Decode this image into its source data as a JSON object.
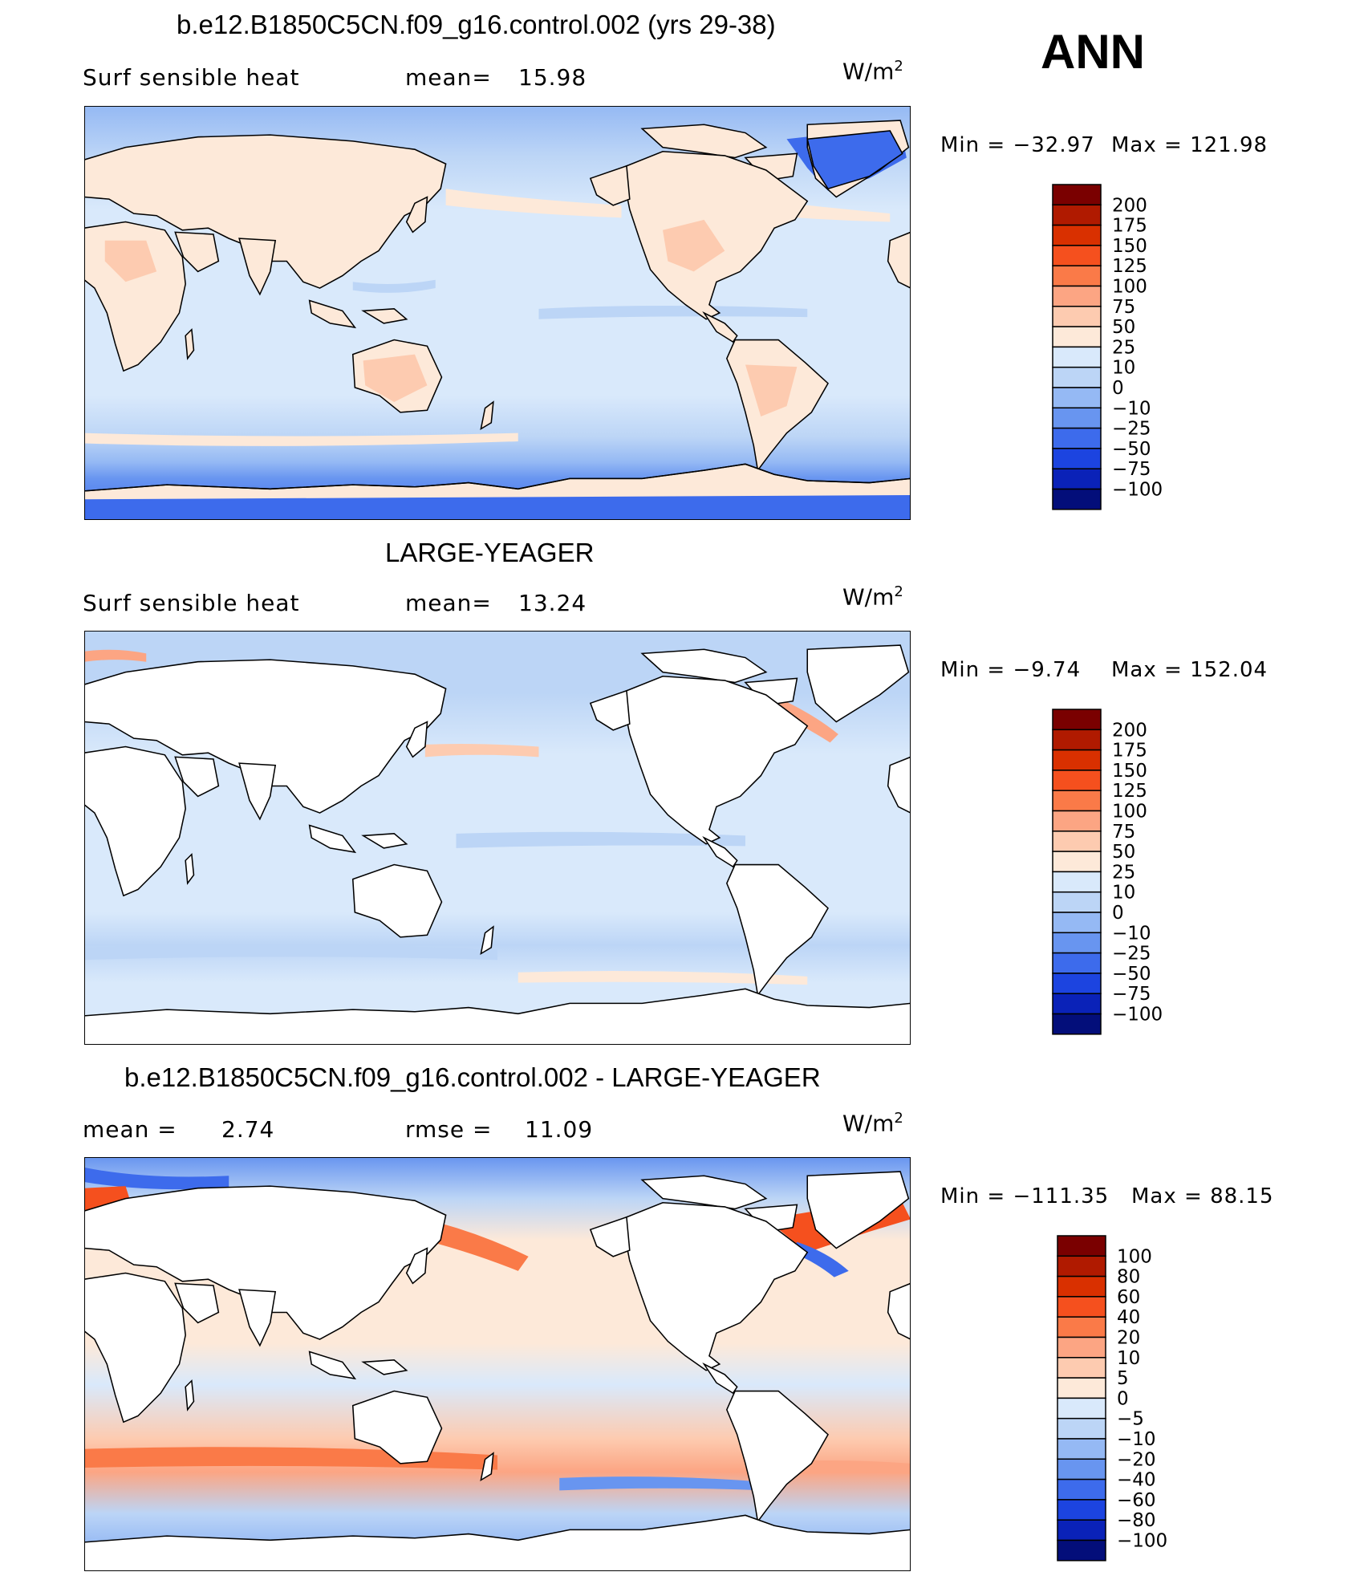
{
  "season": "ANN",
  "units": {
    "base": "W/m",
    "exp": "2"
  },
  "panels": [
    {
      "title": "b.e12.B1850C5CN.f09_g16.control.002 (yrs 29-38)",
      "left_label": "Surf  sensible  heat",
      "stat_label": "mean=",
      "stat_value": "15.98",
      "min_label": "Min  =  −32.97",
      "max_label": "Max  =  121.98",
      "style": "model"
    },
    {
      "title": "LARGE-YEAGER",
      "left_label": "Surf  sensible  heat",
      "stat_label": "mean=",
      "stat_value": "13.24",
      "min_label": "Min  =   −9.74",
      "max_label": "Max  =  152.04",
      "style": "obs"
    },
    {
      "title": "b.e12.B1850C5CN.f09_g16.control.002 - LARGE-YEAGER",
      "left_label": "mean  =",
      "left_value": "2.74",
      "stat_label": "rmse  =",
      "stat_value": "11.09",
      "min_label": "Min  =  −111.35",
      "max_label": "Max  =   88.15",
      "style": "diff"
    }
  ],
  "colorbars": {
    "abs": {
      "labels": [
        "200",
        "175",
        "150",
        "125",
        "100",
        "75",
        "50",
        "25",
        "10",
        "0",
        "−10",
        "−25",
        "−50",
        "−75",
        "−100"
      ],
      "colors": [
        "#7a0000",
        "#b01a00",
        "#d93000",
        "#f5501e",
        "#fa7a48",
        "#fca583",
        "#fdcbb0",
        "#fde9d9",
        "#d9e9fb",
        "#bcd5f6",
        "#95b9f4",
        "#6895f0",
        "#3d6bec",
        "#1c44e0",
        "#0a22b8",
        "#030e7a"
      ]
    },
    "diff": {
      "labels": [
        "100",
        "80",
        "60",
        "40",
        "20",
        "10",
        "5",
        "0",
        "−5",
        "−10",
        "−20",
        "−40",
        "−60",
        "−80",
        "−100"
      ],
      "colors": [
        "#7a0000",
        "#b01a00",
        "#d93000",
        "#f5501e",
        "#fa7a48",
        "#fca583",
        "#fdcbb0",
        "#fde9d9",
        "#d9e9fb",
        "#bcd5f6",
        "#95b9f4",
        "#6895f0",
        "#3d6bec",
        "#1c44e0",
        "#0a22b8",
        "#030e7a"
      ]
    }
  },
  "chart_data": [
    {
      "type": "heatmap",
      "title": "b.e12.B1850C5CN.f09_g16.control.002 (yrs 29-38)",
      "variable": "Surf  sensible  heat",
      "units": "W/m2",
      "mean": 15.98,
      "min": -32.97,
      "max": 121.98,
      "contour_levels": [
        -100,
        -75,
        -50,
        -25,
        -10,
        0,
        10,
        25,
        50,
        75,
        100,
        125,
        150,
        175,
        200
      ]
    },
    {
      "type": "heatmap",
      "title": "LARGE-YEAGER",
      "variable": "Surf  sensible  heat",
      "units": "W/m2",
      "mean": 13.24,
      "min": -9.74,
      "max": 152.04,
      "contour_levels": [
        -100,
        -75,
        -50,
        -25,
        -10,
        0,
        10,
        25,
        50,
        75,
        100,
        125,
        150,
        175,
        200
      ]
    },
    {
      "type": "heatmap",
      "title": "b.e12.B1850C5CN.f09_g16.control.002 - LARGE-YEAGER",
      "units": "W/m2",
      "mean": 2.74,
      "rmse": 11.09,
      "min": -111.35,
      "max": 88.15,
      "contour_levels": [
        -100,
        -80,
        -60,
        -40,
        -20,
        -10,
        -5,
        0,
        5,
        10,
        20,
        40,
        60,
        80,
        100
      ]
    }
  ]
}
